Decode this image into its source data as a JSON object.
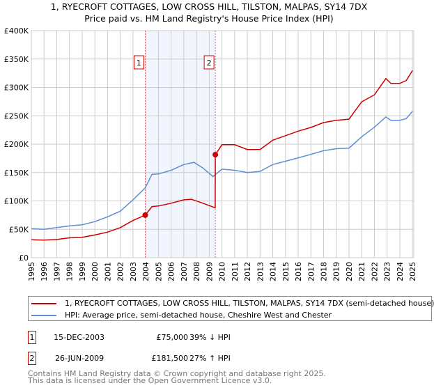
{
  "title": {
    "line1": "1, RYECROFT COTTAGES, LOW CROSS HILL, TILSTON, MALPAS, SY14 7DX",
    "line2": "Price paid vs. HM Land Registry's House Price Index (HPI)"
  },
  "chart_data": {
    "type": "line",
    "title": "1, RYECROFT COTTAGES, LOW CROSS HILL, TILSTON, MALPAS, SY14 7DX - Price paid vs. HM Land Registry's House Price Index (HPI)",
    "xlim": [
      1995,
      2025.1
    ],
    "ylim": [
      0,
      400000
    ],
    "x_ticks": [
      "1995",
      "1996",
      "1997",
      "1998",
      "1999",
      "2000",
      "2001",
      "2002",
      "2003",
      "2004",
      "2005",
      "2006",
      "2007",
      "2008",
      "2009",
      "2010",
      "2011",
      "2012",
      "2013",
      "2014",
      "2015",
      "2016",
      "2017",
      "2018",
      "2019",
      "2020",
      "2021",
      "2022",
      "2023",
      "2024",
      "2025"
    ],
    "y_ticks": [
      {
        "value": 0,
        "label": "£0"
      },
      {
        "value": 50000,
        "label": "£50K"
      },
      {
        "value": 100000,
        "label": "£100K"
      },
      {
        "value": 150000,
        "label": "£150K"
      },
      {
        "value": 200000,
        "label": "£200K"
      },
      {
        "value": 250000,
        "label": "£250K"
      },
      {
        "value": 300000,
        "label": "£300K"
      },
      {
        "value": 350000,
        "label": "£350K"
      },
      {
        "value": 400000,
        "label": "£400K"
      }
    ],
    "grid": true,
    "legend_placement": "below",
    "series": [
      {
        "name": "1, RYECROFT COTTAGES, LOW CROSS HILL, TILSTON, MALPAS, SY14 7DX (semi-detached house)",
        "color": "#cc0000",
        "x": [
          1995,
          1996,
          1997,
          1998,
          1999,
          2000,
          2001,
          2002,
          2003,
          2003.96,
          2004.5,
          2005,
          2006,
          2007,
          2007.6,
          2008.5,
          2009.47,
          2009.48,
          2010,
          2011,
          2012,
          2013,
          2014,
          2015,
          2016,
          2017,
          2018,
          2019,
          2020,
          2021,
          2022,
          2022.9,
          2023.3,
          2024,
          2024.5,
          2025
        ],
        "y": [
          31500,
          31000,
          32000,
          35000,
          36000,
          40000,
          45000,
          53000,
          65500,
          75000,
          90000,
          91000,
          96000,
          102000,
          103000,
          96000,
          88000,
          181500,
          199000,
          199000,
          190500,
          190500,
          207000,
          215000,
          223000,
          229500,
          238000,
          242000,
          244000,
          274600,
          287000,
          315600,
          307000,
          307000,
          312000,
          330000
        ]
      },
      {
        "name": "HPI: Average price, semi-detached house, Cheshire West and Chester",
        "color": "#5b8fd0",
        "x": [
          1995,
          1996,
          1997,
          1998,
          1999,
          2000,
          2001,
          2002,
          2003,
          2003.96,
          2004.5,
          2005,
          2006,
          2007,
          2007.8,
          2008.5,
          2009.3,
          2010,
          2011,
          2012,
          2013,
          2014,
          2015,
          2016,
          2017,
          2018,
          2019,
          2020,
          2021,
          2022,
          2022.9,
          2023.3,
          2024,
          2024.5,
          2025
        ],
        "y": [
          51000,
          50000,
          53000,
          56000,
          58000,
          63500,
          72000,
          82000,
          102000,
          123000,
          147000,
          147500,
          154000,
          164000,
          168000,
          158000,
          143000,
          156000,
          154000,
          150000,
          152000,
          164000,
          170000,
          176000,
          182000,
          188500,
          192000,
          193000,
          213000,
          230000,
          248000,
          242000,
          242000,
          245000,
          258000
        ]
      }
    ],
    "annotations": [
      {
        "label": "1",
        "x": 2003.96,
        "y": 75000
      },
      {
        "label": "2",
        "x": 2009.48,
        "y": 181500
      }
    ],
    "shaded_range": [
      2003.96,
      2009.48
    ]
  },
  "legend": {
    "items": [
      {
        "label": "1, RYECROFT COTTAGES, LOW CROSS HILL, TILSTON, MALPAS, SY14 7DX (semi-detached house)",
        "color": "#cc0000"
      },
      {
        "label": "HPI: Average price, semi-detached house, Cheshire West and Chester",
        "color": "#5b8fd0"
      }
    ]
  },
  "transactions": [
    {
      "num": "1",
      "date": "15-DEC-2003",
      "price": "£75,000",
      "hpi": "39% ↓ HPI"
    },
    {
      "num": "2",
      "date": "26-JUN-2009",
      "price": "£181,500",
      "hpi": "27% ↑ HPI"
    }
  ],
  "footer": {
    "line1": "Contains HM Land Registry data © Crown copyright and database right 2025.",
    "line2": "This data is licensed under the Open Government Licence v3.0."
  }
}
